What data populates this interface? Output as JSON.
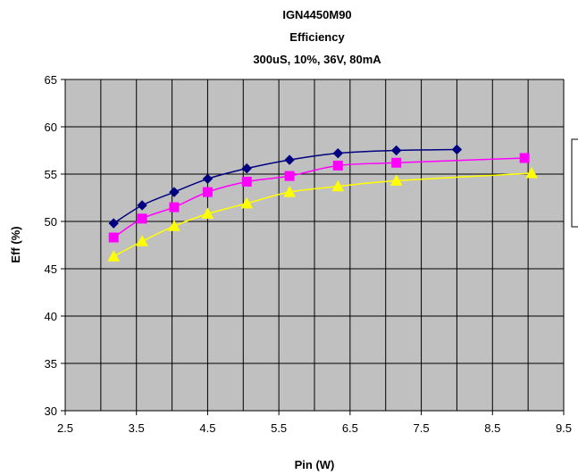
{
  "chart_data": {
    "type": "line",
    "title_lines": [
      "IGN4450M90",
      "Efficiency",
      "300uS, 10%, 36V, 80mA"
    ],
    "xlabel": "Pin (W)",
    "ylabel": "Eff (%)",
    "xlim": [
      2.5,
      9.5
    ],
    "ylim": [
      30,
      65
    ],
    "xticks": [
      "2.5",
      "3.5",
      "4.5",
      "5.5",
      "6.5",
      "7.5",
      "8.5",
      "9.5"
    ],
    "yticks": [
      "30",
      "35",
      "40",
      "45",
      "50",
      "55",
      "60",
      "65"
    ],
    "grid": true,
    "plot_background": "#c0c0c0",
    "legend_placement": "right, clipped by image edge",
    "series": [
      {
        "color": "#000080",
        "marker": "diamond",
        "points": [
          [
            3.18,
            49.8
          ],
          [
            3.58,
            51.7
          ],
          [
            4.03,
            53.1
          ],
          [
            4.5,
            54.5
          ],
          [
            5.05,
            55.6
          ],
          [
            5.65,
            56.5
          ],
          [
            6.33,
            57.2
          ],
          [
            7.15,
            57.5
          ],
          [
            8.0,
            57.6
          ]
        ]
      },
      {
        "color": "#ff00ff",
        "marker": "square",
        "points": [
          [
            3.18,
            48.3
          ],
          [
            3.58,
            50.3
          ],
          [
            4.03,
            51.5
          ],
          [
            4.5,
            53.1
          ],
          [
            5.05,
            54.2
          ],
          [
            5.65,
            54.8
          ],
          [
            6.33,
            55.9
          ],
          [
            7.15,
            56.2
          ],
          [
            8.95,
            56.7
          ]
        ]
      },
      {
        "color": "#ffff00",
        "marker": "triangle",
        "points": [
          [
            3.18,
            46.3
          ],
          [
            3.58,
            47.9
          ],
          [
            4.03,
            49.5
          ],
          [
            4.5,
            50.8
          ],
          [
            5.05,
            51.9
          ],
          [
            5.65,
            53.1
          ],
          [
            6.33,
            53.7
          ],
          [
            7.15,
            54.3
          ],
          [
            9.05,
            55.1
          ]
        ]
      }
    ]
  }
}
